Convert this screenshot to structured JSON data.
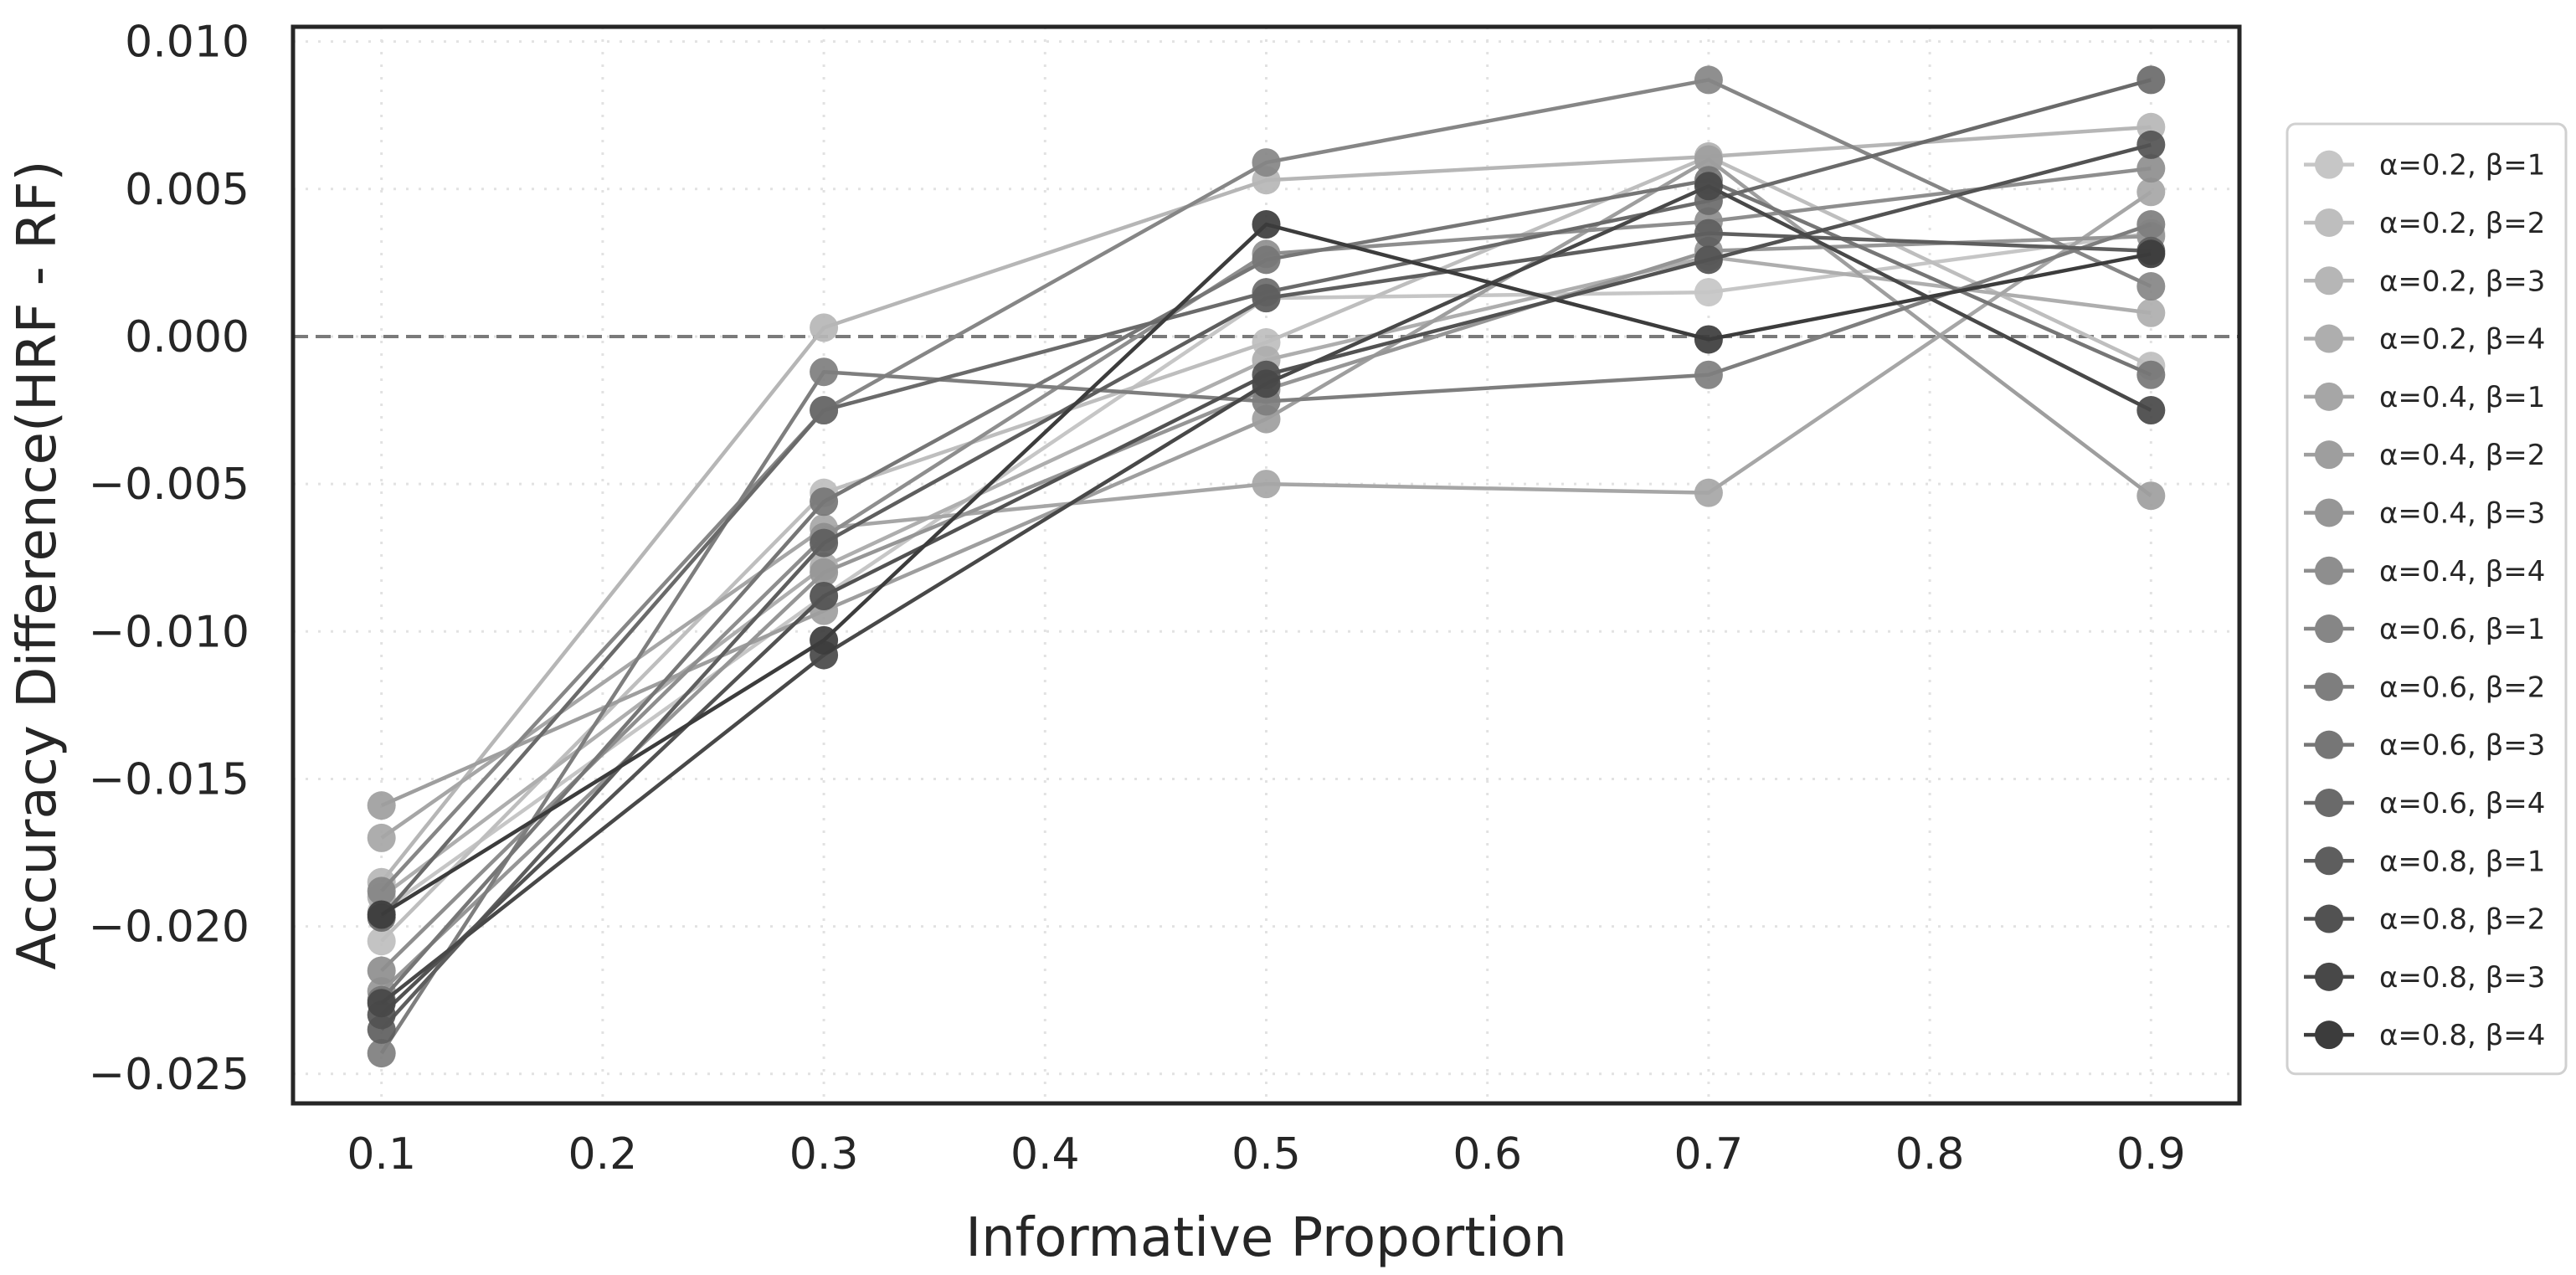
{
  "chart_data": {
    "type": "line",
    "title": "",
    "xlabel": "Informative Proportion",
    "ylabel": "Accuracy Difference(HRF - RF)",
    "x": [
      0.1,
      0.3,
      0.5,
      0.7,
      0.9
    ],
    "xticks": [
      0.1,
      0.2,
      0.3,
      0.4,
      0.5,
      0.6,
      0.7,
      0.8,
      0.9
    ],
    "xtick_labels": [
      "0.1",
      "0.2",
      "0.3",
      "0.4",
      "0.5",
      "0.6",
      "0.7",
      "0.8",
      "0.9"
    ],
    "xlim": [
      0.06,
      0.94
    ],
    "yticks": [
      -0.025,
      -0.02,
      -0.015,
      -0.01,
      -0.005,
      0.0,
      0.005,
      0.01
    ],
    "ytick_labels": [
      "−0.025",
      "−0.020",
      "−0.015",
      "−0.010",
      "−0.005",
      "0.000",
      "0.005",
      "0.010"
    ],
    "ylim": [
      -0.026,
      0.0105
    ],
    "grid": true,
    "reference_line": {
      "y": 0.0,
      "style": "dashed"
    },
    "legend_position": "right-outside",
    "series": [
      {
        "name": "α=0.2, β=1",
        "color": "#c6c6c6",
        "values": [
          -0.0195,
          -0.0088,
          0.0013,
          0.0015,
          0.0035
        ]
      },
      {
        "name": "α=0.2, β=2",
        "color": "#bebebe",
        "values": [
          -0.0205,
          -0.0053,
          -0.0002,
          0.0061,
          -0.001
        ]
      },
      {
        "name": "α=0.2, β=3",
        "color": "#b6b6b6",
        "values": [
          -0.0185,
          0.0003,
          0.0053,
          0.0061,
          0.0071
        ]
      },
      {
        "name": "α=0.2, β=4",
        "color": "#aeaeae",
        "values": [
          -0.019,
          -0.0078,
          -0.0008,
          0.0027,
          0.0008
        ]
      },
      {
        "name": "α=0.4, β=1",
        "color": "#a6a6a6",
        "values": [
          -0.017,
          -0.0065,
          -0.005,
          -0.0053,
          0.0049
        ]
      },
      {
        "name": "α=0.4, β=2",
        "color": "#9e9e9e",
        "values": [
          -0.0159,
          -0.0093,
          -0.0028,
          0.006,
          -0.0054
        ]
      },
      {
        "name": "α=0.4, β=3",
        "color": "#969696",
        "values": [
          -0.0222,
          -0.008,
          -0.0018,
          0.0029,
          0.0034
        ]
      },
      {
        "name": "α=0.4, β=4",
        "color": "#8e8e8e",
        "values": [
          -0.0215,
          -0.0068,
          0.0028,
          0.0039,
          0.0057
        ]
      },
      {
        "name": "α=0.6, β=1",
        "color": "#868686",
        "values": [
          -0.0188,
          -0.0025,
          0.0059,
          0.0087,
          0.0017
        ]
      },
      {
        "name": "α=0.6, β=2",
        "color": "#7e7e7e",
        "values": [
          -0.0243,
          -0.0012,
          -0.0022,
          -0.0013,
          0.0038
        ]
      },
      {
        "name": "α=0.6, β=3",
        "color": "#767676",
        "values": [
          -0.0225,
          -0.0056,
          0.0026,
          0.0053,
          -0.0013
        ]
      },
      {
        "name": "α=0.6, β=4",
        "color": "#6a6a6a",
        "values": [
          -0.0197,
          -0.0025,
          0.0015,
          0.0046,
          0.0087
        ]
      },
      {
        "name": "α=0.8, β=1",
        "color": "#5e5e5e",
        "values": [
          -0.0235,
          -0.007,
          0.0013,
          0.0035,
          0.0029
        ]
      },
      {
        "name": "α=0.8, β=2",
        "color": "#525252",
        "values": [
          -0.023,
          -0.0088,
          -0.0013,
          0.0026,
          0.0065
        ]
      },
      {
        "name": "α=0.8, β=3",
        "color": "#484848",
        "values": [
          -0.0226,
          -0.0108,
          -0.0016,
          0.0051,
          -0.0025
        ]
      },
      {
        "name": "α=0.8, β=4",
        "color": "#3c3c3c",
        "values": [
          -0.0196,
          -0.0103,
          0.0038,
          -0.0001,
          0.0028
        ]
      }
    ]
  }
}
